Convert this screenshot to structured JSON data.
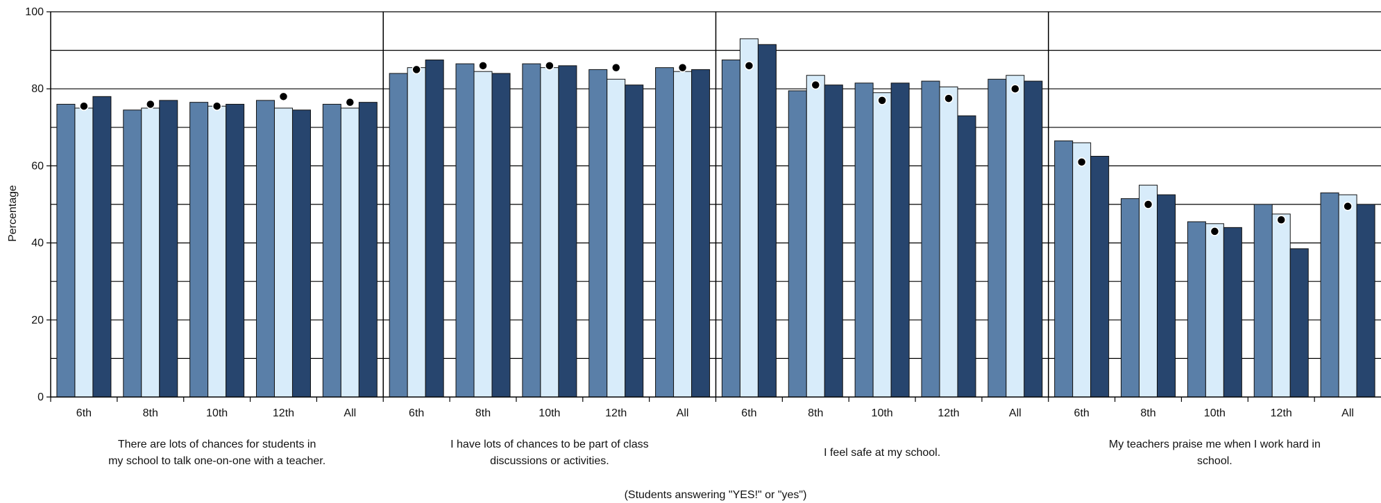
{
  "chart_data": {
    "type": "bar",
    "ylabel": "Percentage",
    "note": "(Students answering \"YES!\" or \"yes\")",
    "ylim": [
      0,
      100
    ],
    "yticks": [
      0,
      20,
      40,
      60,
      80,
      100
    ],
    "grid": true,
    "colors": [
      "#5a7fa8",
      "#d8ecfa",
      "#27456e"
    ],
    "marker_color": "#000000",
    "groups": [
      {
        "label_lines": [
          "There are lots of chances for students in",
          "my school to talk one-on-one with a teacher."
        ],
        "categories": [
          "6th",
          "8th",
          "10th",
          "12th",
          "All"
        ],
        "series": [
          {
            "values": [
              76,
              74.5,
              76.5,
              77,
              76
            ]
          },
          {
            "values": [
              75,
              75,
              75.5,
              75,
              75
            ]
          },
          {
            "values": [
              78,
              77,
              76,
              74.5,
              76.5
            ]
          }
        ],
        "markers": [
          75.5,
          76,
          75.5,
          78,
          76.5
        ]
      },
      {
        "label_lines": [
          "I have lots of chances to be part of class",
          "discussions or activities."
        ],
        "categories": [
          "6th",
          "8th",
          "10th",
          "12th",
          "All"
        ],
        "series": [
          {
            "values": [
              84,
              86.5,
              86.5,
              85,
              85.5
            ]
          },
          {
            "values": [
              85.5,
              84.5,
              85.5,
              82.5,
              84.5
            ]
          },
          {
            "values": [
              87.5,
              84,
              86,
              81,
              85
            ]
          }
        ],
        "markers": [
          85,
          86,
          86,
          85.5,
          85.5
        ]
      },
      {
        "label_lines": [
          "I feel safe at my school."
        ],
        "categories": [
          "6th",
          "8th",
          "10th",
          "12th",
          "All"
        ],
        "series": [
          {
            "values": [
              87.5,
              79.5,
              81.5,
              82,
              82.5
            ]
          },
          {
            "values": [
              93,
              83.5,
              79,
              80.5,
              83.5
            ]
          },
          {
            "values": [
              91.5,
              81,
              81.5,
              73,
              82
            ]
          }
        ],
        "markers": [
          86,
          81,
          77,
          77.5,
          80
        ]
      },
      {
        "label_lines": [
          "My teachers praise me when I work hard in",
          "school."
        ],
        "categories": [
          "6th",
          "8th",
          "10th",
          "12th",
          "All"
        ],
        "series": [
          {
            "values": [
              66.5,
              51.5,
              45.5,
              50,
              53
            ]
          },
          {
            "values": [
              66,
              55,
              45,
              47.5,
              52.5
            ]
          },
          {
            "values": [
              62.5,
              52.5,
              44,
              38.5,
              50
            ]
          }
        ],
        "markers": [
          61,
          50,
          43,
          46,
          49.5
        ]
      }
    ]
  }
}
